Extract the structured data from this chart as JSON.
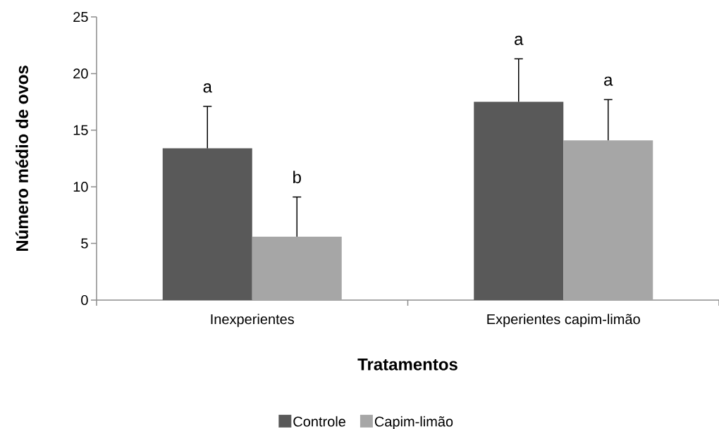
{
  "chart_data": {
    "type": "bar",
    "xlabel": "Tratamentos",
    "ylabel": "Número médio de ovos",
    "categories": [
      "Inexperientes",
      "Experientes capim-limão"
    ],
    "series": [
      {
        "name": "Controle",
        "color": "#595959",
        "values": [
          13.4,
          17.5
        ],
        "errors": [
          [
            13.4,
            17.1
          ],
          [
            17.5,
            21.3
          ]
        ]
      },
      {
        "name": "Capim-limão",
        "color": "#a6a6a6",
        "values": [
          5.6,
          14.1
        ],
        "errors": [
          [
            5.6,
            9.1
          ],
          [
            14.1,
            17.7
          ]
        ]
      }
    ],
    "ylim": [
      0,
      25
    ],
    "yticks": [
      0,
      5,
      10,
      15,
      20,
      25
    ],
    "grid": false,
    "legend": "bottom",
    "annotations": [
      "a",
      "b",
      "a",
      "a"
    ]
  }
}
